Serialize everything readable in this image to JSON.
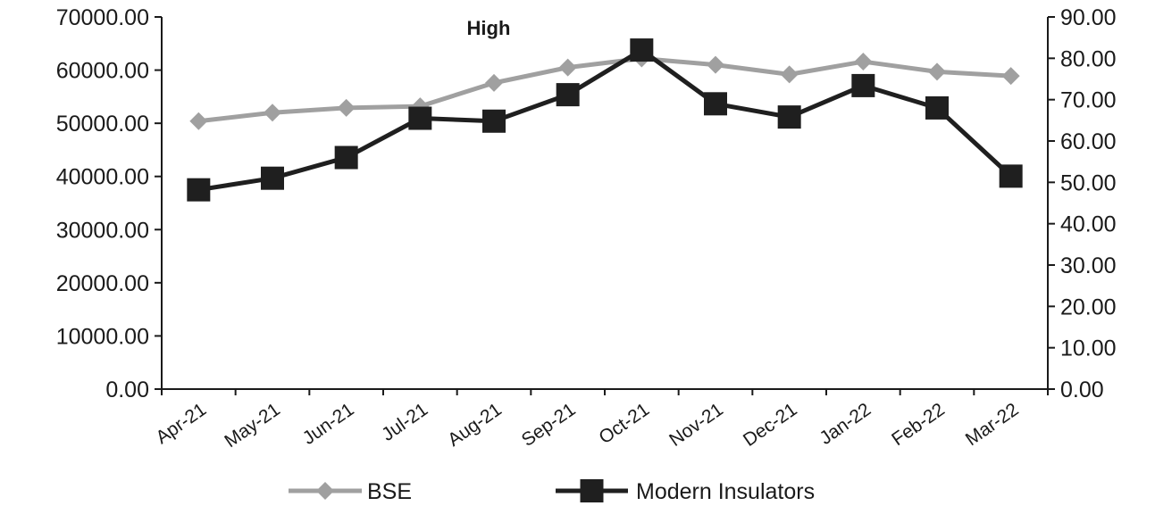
{
  "chart_data": {
    "type": "line",
    "title": "High",
    "categories": [
      "Apr-21",
      "May-21",
      "Jun-21",
      "Jul-21",
      "Aug-21",
      "Sep-21",
      "Oct-21",
      "Nov-21",
      "Dec-21",
      "Jan-22",
      "Feb-22",
      "Mar-22"
    ],
    "series": [
      {
        "name": "BSE",
        "axis": "left",
        "color": "#a0a0a0",
        "marker": "diamond",
        "values": [
          50400,
          52000,
          52900,
          53200,
          57600,
          60500,
          62200,
          61000,
          59200,
          61600,
          59700,
          58900
        ]
      },
      {
        "name": "Modern Insulators",
        "axis": "right",
        "color": "#1f1f1f",
        "marker": "square",
        "values": [
          48.2,
          51.0,
          56.0,
          65.5,
          64.8,
          71.2,
          82.0,
          69.0,
          65.8,
          73.4,
          68.0,
          51.5
        ]
      }
    ],
    "y_left": {
      "min": 0,
      "max": 70000,
      "ticks": [
        "0.00",
        "10000.00",
        "20000.00",
        "30000.00",
        "40000.00",
        "50000.00",
        "60000.00",
        "70000.00"
      ],
      "tick_values": [
        0,
        10000,
        20000,
        30000,
        40000,
        50000,
        60000,
        70000
      ]
    },
    "y_right": {
      "min": 0,
      "max": 90,
      "ticks": [
        "0.00",
        "10.00",
        "20.00",
        "30.00",
        "40.00",
        "50.00",
        "60.00",
        "70.00",
        "80.00",
        "90.00"
      ],
      "tick_values": [
        0,
        10,
        20,
        30,
        40,
        50,
        60,
        70,
        80,
        90
      ]
    },
    "grid": false,
    "legend": "bottom"
  }
}
